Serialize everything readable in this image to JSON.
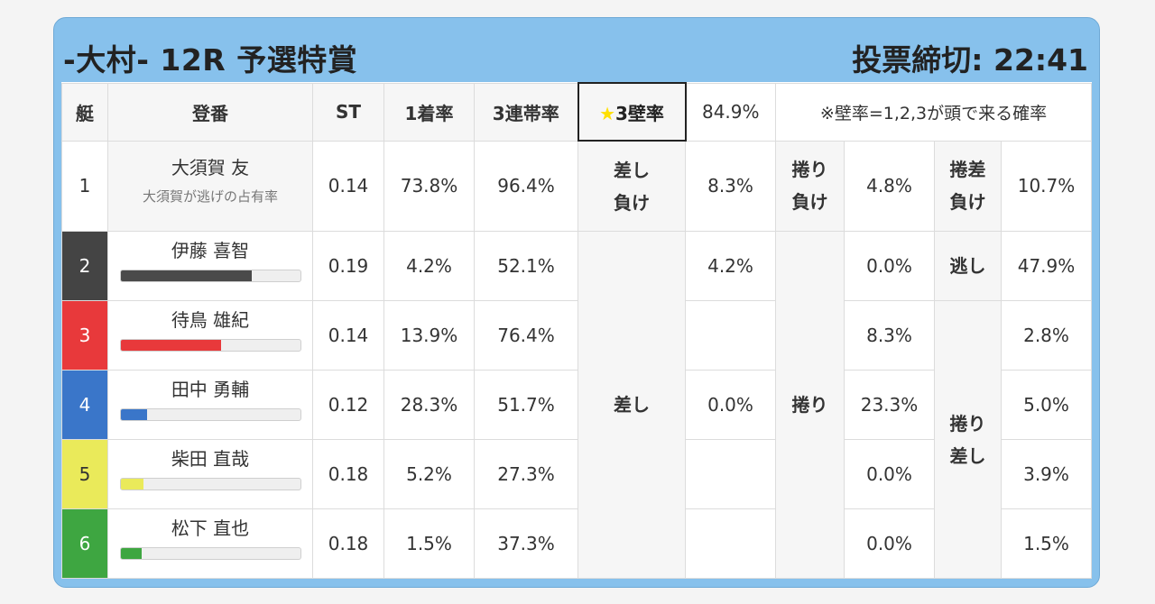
{
  "header": {
    "title": "-大村- 12R 予選特賞",
    "deadline": "投票締切: 22:41"
  },
  "table_header": {
    "boat": "艇",
    "name": "登番",
    "st": "ST",
    "first": "1着率",
    "top3": "3連帯率",
    "star": "★",
    "wall_label": "3壁率",
    "wall_value": "84.9%",
    "note": "※壁率=1,2,3が頭で来る確率"
  },
  "racers": [
    {
      "boat": "1",
      "name": "大須賀 友",
      "sub": "大須賀が逃げの占有率",
      "st": "0.14",
      "first": "73.8%",
      "top3": "96.4%",
      "color": "#ffffff"
    },
    {
      "boat": "2",
      "name": "伊藤 喜智",
      "st": "0.19",
      "first": "4.2%",
      "top3": "52.1%",
      "color": "#444444",
      "bar": 0.73,
      "bar_color": "#4a4a4a"
    },
    {
      "boat": "3",
      "name": "待鳥 雄紀",
      "st": "0.14",
      "first": "13.9%",
      "top3": "76.4%",
      "color": "#e8393b",
      "bar": 0.56,
      "bar_color": "#e8393b"
    },
    {
      "boat": "4",
      "name": "田中 勇輔",
      "st": "0.12",
      "first": "28.3%",
      "top3": "51.7%",
      "color": "#3a76c9",
      "bar": 0.15,
      "bar_color": "#3a76c9"
    },
    {
      "boat": "5",
      "name": "柴田 直哉",
      "st": "0.18",
      "first": "5.2%",
      "top3": "27.3%",
      "color": "#eaea5a",
      "bar": 0.13,
      "bar_color": "#eaea5a"
    },
    {
      "boat": "6",
      "name": "松下 直也",
      "st": "0.18",
      "first": "1.5%",
      "top3": "37.3%",
      "color": "#3ea641",
      "bar": 0.12,
      "bar_color": "#3ea641"
    }
  ],
  "outcomes": {
    "c1_r1_label": "差し負け",
    "c1_r1_value": "8.3%",
    "c1_label": "差し",
    "c1_r2_value": "4.2%",
    "c1_r4_value": "0.0%",
    "c2_r1_label": "捲り負け",
    "c2_r1_value": "4.8%",
    "c2_label": "捲り",
    "c2_r2_value": "0.0%",
    "c2_r3_value": "8.3%",
    "c2_r4_value": "23.3%",
    "c2_r5_value": "0.0%",
    "c2_r6_value": "0.0%",
    "c3_r1_label": "捲差負け",
    "c3_r1_value": "10.7%",
    "c3_r2_label": "逃し",
    "c3_r2_value": "47.9%",
    "c3_label": "捲り差し",
    "c3_r3_value": "2.8%",
    "c3_r4_value": "5.0%",
    "c3_r5_value": "3.9%",
    "c3_r6_value": "1.5%"
  }
}
